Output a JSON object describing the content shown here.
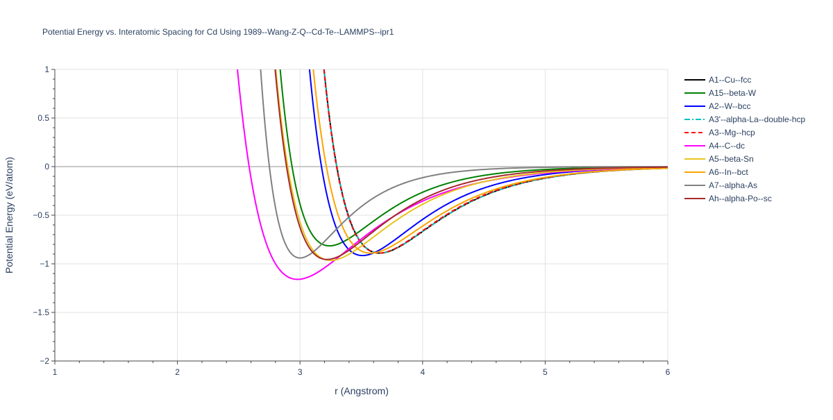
{
  "chart_data": {
    "type": "line",
    "title": "Potential Energy vs. Interatomic Spacing for Cd Using 1989--Wang-Z-Q--Cd-Te--LAMMPS--ipr1",
    "xlabel": "r (Angstrom)",
    "ylabel": "Potential Energy (eV/atom)",
    "xlim": [
      1,
      6
    ],
    "ylim": [
      -2,
      1
    ],
    "x_ticks": [
      1,
      2,
      3,
      4,
      5,
      6
    ],
    "y_ticks": [
      1,
      0.5,
      0,
      -0.5,
      -1,
      -1.5,
      -2
    ],
    "x_tick_labels": [
      "1",
      "2",
      "3",
      "4",
      "5",
      "6"
    ],
    "y_tick_labels": [
      "1",
      "0.5",
      "0",
      "−0.5",
      "−1",
      "−1.5",
      "−2"
    ],
    "grid": true,
    "legend_position": "right",
    "series": [
      {
        "name": "A1--Cu--fcc",
        "color": "#000000",
        "dash": "solid",
        "r0": 3.65,
        "emin": -0.89,
        "rcross": 3.3
      },
      {
        "name": "A15--beta-W",
        "color": "#008000",
        "dash": "solid",
        "r0": 3.24,
        "emin": -0.815,
        "rcross": 2.935
      },
      {
        "name": "A2--W--bcc",
        "color": "#0000ff",
        "dash": "solid",
        "r0": 3.51,
        "emin": -0.915,
        "rcross": 3.175
      },
      {
        "name": "A3'--alpha-La--double-hcp",
        "color": "#00bfbf",
        "dash": "dashdot",
        "r0": 3.65,
        "emin": -0.89,
        "rcross": 3.3
      },
      {
        "name": "A3--Mg--hcp",
        "color": "#ff0000",
        "dash": "dash",
        "r0": 3.645,
        "emin": -0.89,
        "rcross": 3.298
      },
      {
        "name": "A4--C--dc",
        "color": "#ff00ff",
        "dash": "solid",
        "r0": 2.98,
        "emin": -1.16,
        "rcross": 2.585
      },
      {
        "name": "A5--beta-Sn",
        "color": "#e6c41c",
        "dash": "solid",
        "r0": 3.25,
        "emin": -0.965,
        "rcross": 2.9
      },
      {
        "name": "A6--In--bct",
        "color": "#ffa500",
        "dash": "solid",
        "r0": 3.575,
        "emin": -0.89,
        "rcross": 3.215
      },
      {
        "name": "A7--alpha-As",
        "color": "#808080",
        "dash": "solid",
        "r0": 3.0,
        "emin": -0.94,
        "rcross": 2.75
      },
      {
        "name": "Ah--alpha-Po--sc",
        "color": "#a52a2a",
        "dash": "solid",
        "r0": 3.22,
        "emin": -0.955,
        "rcross": 2.89
      }
    ]
  }
}
